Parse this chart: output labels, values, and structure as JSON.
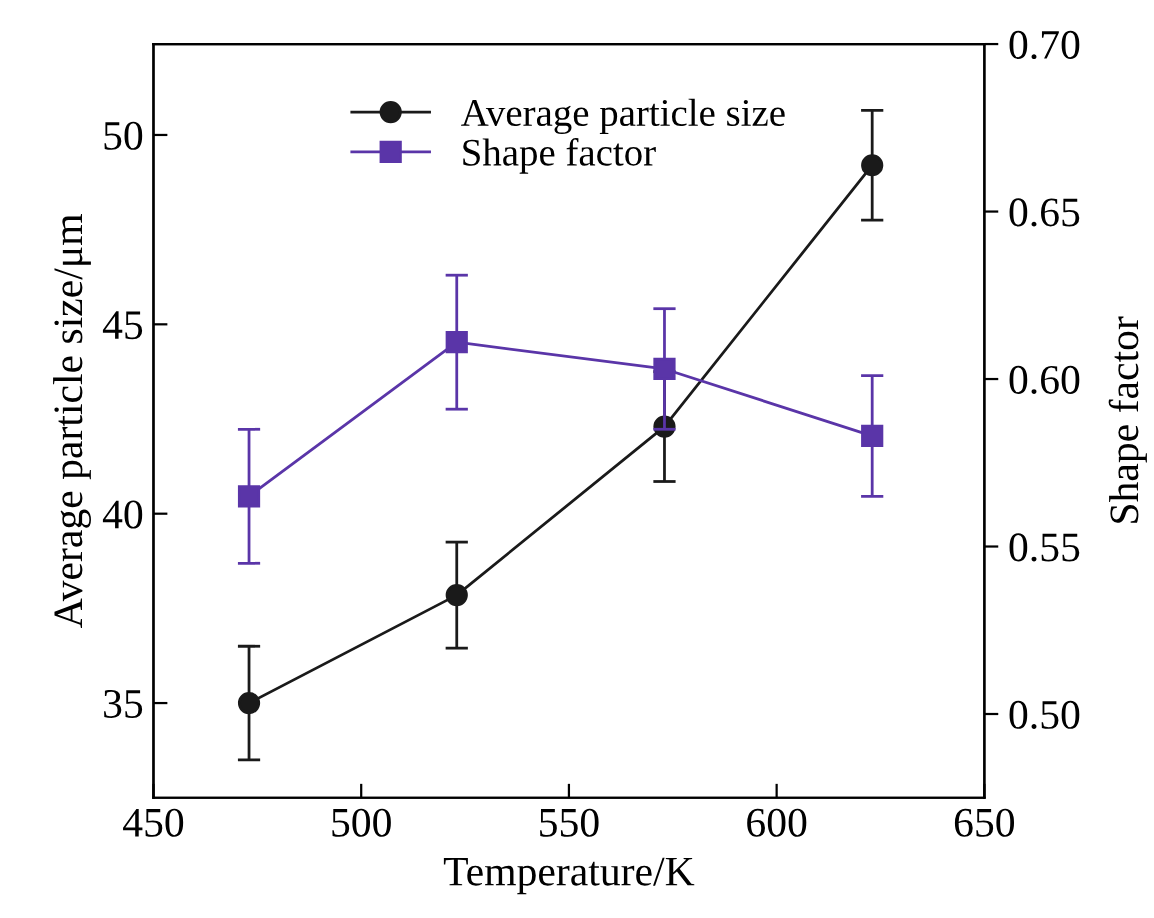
{
  "chart_data": {
    "type": "line",
    "xlabel": "Temperature/K",
    "ylabel": "Average particle size/μm",
    "y2label": "Shape factor",
    "x": [
      473,
      523,
      573,
      623
    ],
    "series": [
      {
        "name": "Average particle size",
        "color": "#1a1a1a",
        "values": [
          35.0,
          37.85,
          42.3,
          49.2
        ],
        "errors": [
          1.5,
          1.4,
          1.45,
          1.45
        ],
        "marker": "circle"
      },
      {
        "name": "Shape factor",
        "color": "#5a35a8",
        "axis": "y2",
        "values": [
          0.565,
          0.611,
          0.603,
          0.583
        ],
        "errors": [
          0.02,
          0.02,
          0.018,
          0.018
        ],
        "marker": "square"
      }
    ],
    "xlim": [
      450,
      650
    ],
    "xticks": [
      450,
      500,
      550,
      600,
      650
    ],
    "ylim": [
      32.5,
      52.4
    ],
    "yticks": [
      35,
      40,
      45,
      50
    ],
    "y2lim": [
      0.475,
      0.7
    ],
    "y2ticks": [
      {
        "value": 0.5,
        "label": "0.50"
      },
      {
        "value": 0.55,
        "label": "0.55"
      },
      {
        "value": 0.6,
        "label": "0.60"
      },
      {
        "value": 0.65,
        "label": "0.65"
      },
      {
        "value": 0.7,
        "label": "0.70"
      }
    ],
    "legend": "top",
    "grid": false,
    "line_style": "solid"
  }
}
